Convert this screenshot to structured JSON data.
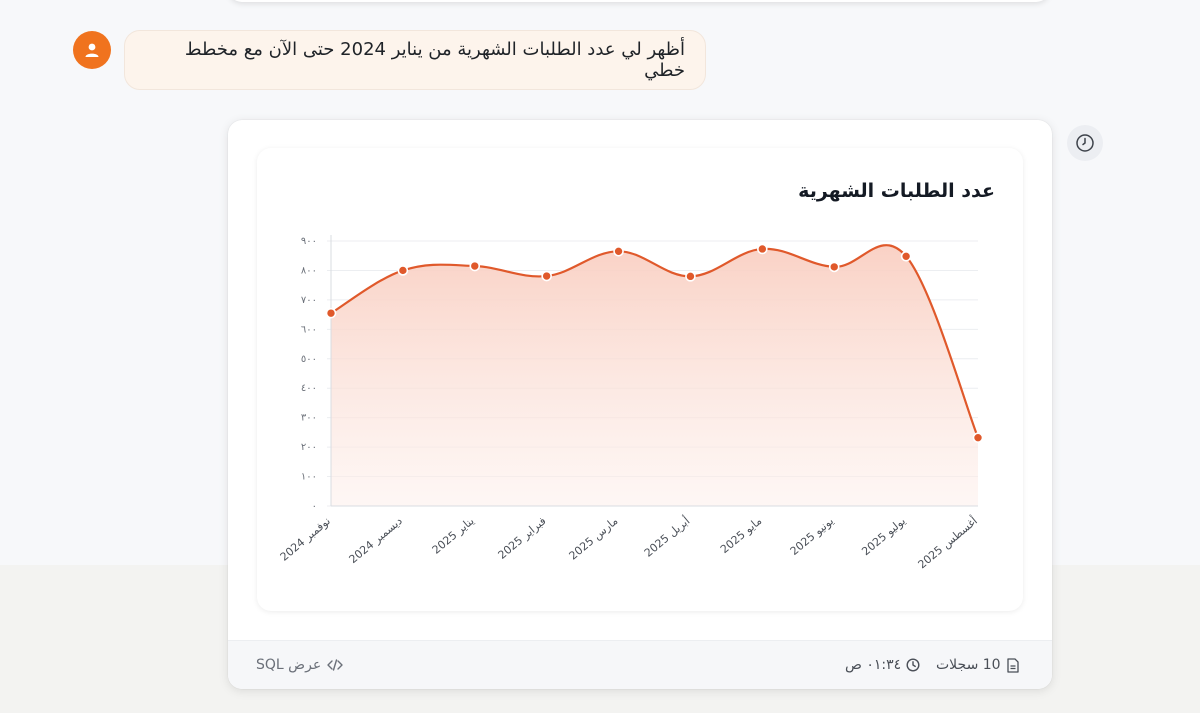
{
  "user_message": "أظهر لي عدد الطلبات الشهرية من يناير 2024 حتى الآن مع مخطط خطي",
  "footer": {
    "records": "10 سجلات",
    "time": "٠١:٣٤ ص",
    "sql_label": "عرض SQL"
  },
  "icons": {
    "avatar": "user-icon",
    "records": "document-icon",
    "time": "clock-icon",
    "sql": "code-icon",
    "history": "history-icon"
  },
  "colors": {
    "accent": "#f0731e",
    "line": "#e0592b",
    "fill": "#f9d3c8"
  },
  "chart_data": {
    "type": "area",
    "title": "عدد الطلبات الشهرية",
    "categories": [
      "نوفمبر 2024",
      "ديسمبر 2024",
      "يناير 2025",
      "فبراير 2025",
      "مارس 2025",
      "أبريل 2025",
      "مايو 2025",
      "يونيو 2025",
      "يوليو 2025",
      "أغسطس 2025"
    ],
    "values": [
      655,
      800,
      815,
      781,
      865,
      780,
      873,
      812,
      848,
      232
    ],
    "yticks": [
      "٠",
      "١٠٠",
      "٢٠٠",
      "٣٠٠",
      "٤٠٠",
      "٥٠٠",
      "٦٠٠",
      "٧٠٠",
      "٨٠٠",
      "٩٠٠"
    ],
    "ylim": [
      0,
      900
    ],
    "grid": true,
    "smooth": true
  }
}
